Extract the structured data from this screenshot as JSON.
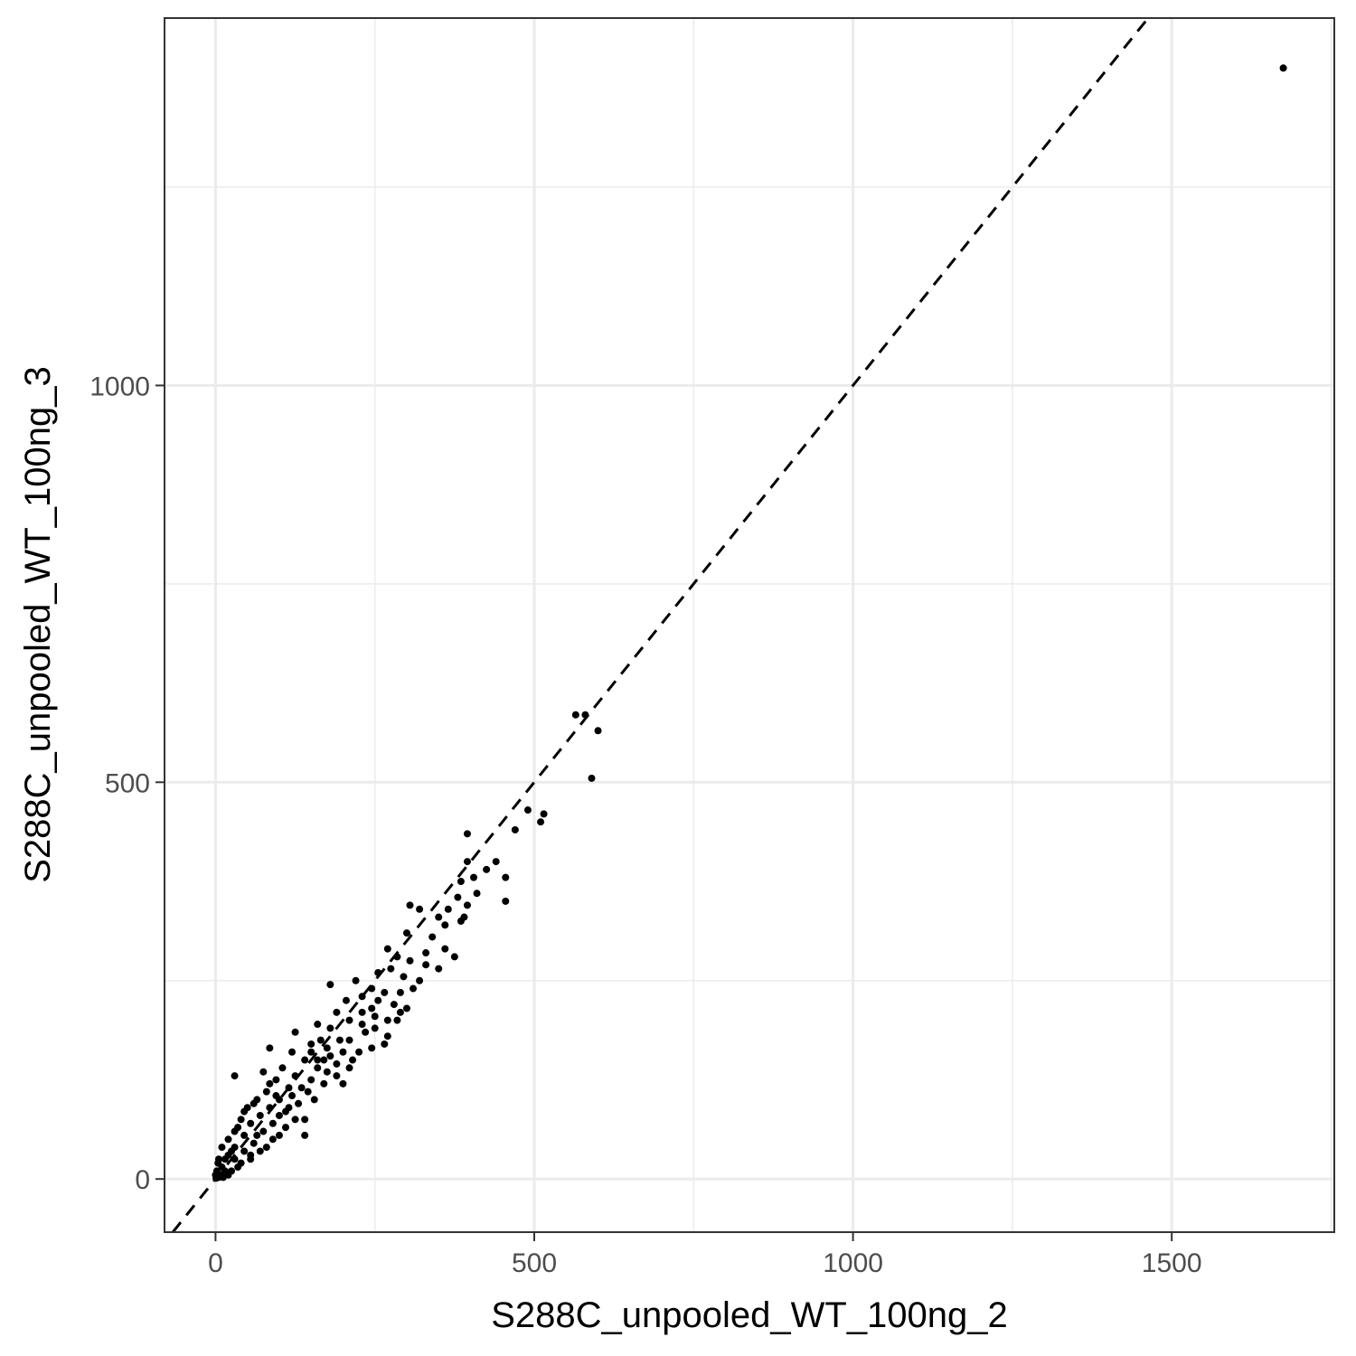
{
  "chart_data": {
    "type": "scatter",
    "title": "",
    "xlabel": "S288C_unpooled_WT_100ng_2",
    "ylabel": "S288C_unpooled_WT_100ng_3",
    "xlim": [
      -80,
      1755
    ],
    "ylim": [
      -67,
      1463
    ],
    "x_ticks": [
      0,
      500,
      1000,
      1500
    ],
    "y_ticks": [
      0,
      500,
      1000
    ],
    "x_tick_labels": [
      "0",
      "500",
      "1000",
      "1500"
    ],
    "y_tick_labels": [
      "0",
      "500",
      "1000"
    ],
    "grid": true,
    "legend": "none",
    "reference_line": {
      "type": "identity",
      "style": "dashed",
      "color": "#000000"
    },
    "point_color": "#000000",
    "points": [
      [
        1675,
        1400
      ],
      [
        565,
        585
      ],
      [
        580,
        585
      ],
      [
        600,
        565
      ],
      [
        590,
        505
      ],
      [
        490,
        465
      ],
      [
        515,
        460
      ],
      [
        510,
        450
      ],
      [
        470,
        440
      ],
      [
        395,
        435
      ],
      [
        395,
        400
      ],
      [
        440,
        400
      ],
      [
        425,
        390
      ],
      [
        455,
        380
      ],
      [
        405,
        380
      ],
      [
        385,
        375
      ],
      [
        410,
        360
      ],
      [
        455,
        350
      ],
      [
        380,
        355
      ],
      [
        395,
        345
      ],
      [
        365,
        340
      ],
      [
        390,
        330
      ],
      [
        305,
        345
      ],
      [
        320,
        340
      ],
      [
        350,
        330
      ],
      [
        360,
        320
      ],
      [
        385,
        325
      ],
      [
        300,
        310
      ],
      [
        340,
        305
      ],
      [
        360,
        290
      ],
      [
        330,
        285
      ],
      [
        270,
        290
      ],
      [
        285,
        280
      ],
      [
        305,
        275
      ],
      [
        330,
        270
      ],
      [
        350,
        265
      ],
      [
        375,
        280
      ],
      [
        255,
        260
      ],
      [
        275,
        265
      ],
      [
        295,
        255
      ],
      [
        320,
        250
      ],
      [
        220,
        250
      ],
      [
        245,
        240
      ],
      [
        265,
        235
      ],
      [
        290,
        235
      ],
      [
        310,
        240
      ],
      [
        180,
        245
      ],
      [
        230,
        230
      ],
      [
        255,
        225
      ],
      [
        280,
        220
      ],
      [
        300,
        215
      ],
      [
        205,
        225
      ],
      [
        230,
        210
      ],
      [
        250,
        205
      ],
      [
        270,
        200
      ],
      [
        290,
        210
      ],
      [
        250,
        190
      ],
      [
        270,
        180
      ],
      [
        285,
        200
      ],
      [
        210,
        200
      ],
      [
        190,
        210
      ],
      [
        245,
        165
      ],
      [
        265,
        170
      ],
      [
        235,
        185
      ],
      [
        180,
        190
      ],
      [
        160,
        195
      ],
      [
        195,
        175
      ],
      [
        210,
        175
      ],
      [
        225,
        160
      ],
      [
        215,
        150
      ],
      [
        175,
        165
      ],
      [
        125,
        185
      ],
      [
        150,
        170
      ],
      [
        170,
        150
      ],
      [
        190,
        145
      ],
      [
        210,
        140
      ],
      [
        85,
        165
      ],
      [
        120,
        160
      ],
      [
        140,
        150
      ],
      [
        160,
        140
      ],
      [
        190,
        130
      ],
      [
        105,
        140
      ],
      [
        125,
        130
      ],
      [
        150,
        125
      ],
      [
        170,
        120
      ],
      [
        200,
        120
      ],
      [
        30,
        130
      ],
      [
        75,
        135
      ],
      [
        95,
        125
      ],
      [
        115,
        115
      ],
      [
        145,
        110
      ],
      [
        80,
        110
      ],
      [
        100,
        100
      ],
      [
        130,
        95
      ],
      [
        155,
        100
      ],
      [
        140,
        75
      ],
      [
        65,
        100
      ],
      [
        85,
        90
      ],
      [
        110,
        85
      ],
      [
        125,
        75
      ],
      [
        140,
        55
      ],
      [
        50,
        90
      ],
      [
        70,
        80
      ],
      [
        90,
        70
      ],
      [
        110,
        65
      ],
      [
        100,
        55
      ],
      [
        40,
        75
      ],
      [
        55,
        70
      ],
      [
        75,
        60
      ],
      [
        90,
        50
      ],
      [
        80,
        40
      ],
      [
        30,
        60
      ],
      [
        45,
        55
      ],
      [
        60,
        45
      ],
      [
        70,
        35
      ],
      [
        55,
        30
      ],
      [
        20,
        50
      ],
      [
        30,
        40
      ],
      [
        45,
        35
      ],
      [
        55,
        25
      ],
      [
        40,
        20
      ],
      [
        10,
        40
      ],
      [
        20,
        30
      ],
      [
        30,
        25
      ],
      [
        35,
        15
      ],
      [
        25,
        10
      ],
      [
        5,
        25
      ],
      [
        10,
        15
      ],
      [
        15,
        10
      ],
      [
        20,
        5
      ],
      [
        8,
        5
      ],
      [
        2,
        10
      ],
      [
        3,
        3
      ],
      [
        5,
        2
      ],
      [
        12,
        2
      ],
      [
        1,
        1
      ],
      [
        0,
        5
      ],
      [
        4,
        20
      ],
      [
        115,
        90
      ],
      [
        135,
        115
      ],
      [
        160,
        150
      ],
      [
        175,
        135
      ],
      [
        200,
        160
      ],
      [
        95,
        105
      ],
      [
        85,
        120
      ],
      [
        60,
        95
      ],
      [
        45,
        85
      ],
      [
        35,
        65
      ],
      [
        25,
        35
      ],
      [
        15,
        25
      ],
      [
        65,
        55
      ],
      [
        100,
        80
      ],
      [
        120,
        105
      ],
      [
        230,
        195
      ],
      [
        245,
        215
      ],
      [
        180,
        155
      ],
      [
        165,
        175
      ],
      [
        150,
        160
      ]
    ]
  }
}
